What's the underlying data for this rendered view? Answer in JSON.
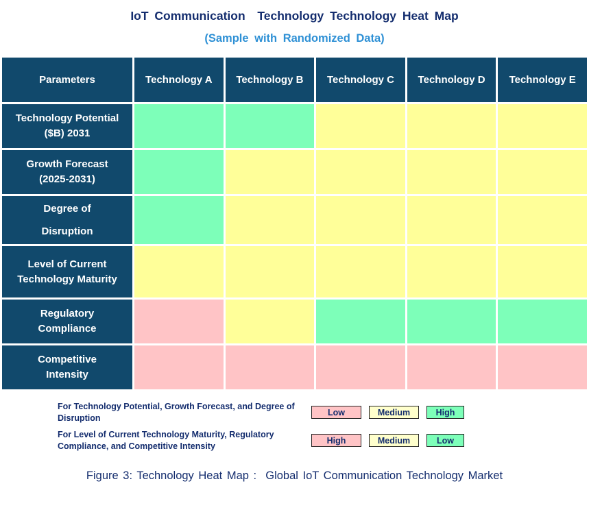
{
  "title": "IoT Communication  Technology Technology Heat Map",
  "subtitle": "(Sample with Randomized Data)",
  "caption": "Figure 3: Technology Heat Map :  Global IoT Communication Technology Market",
  "colors": {
    "header_bg": "#11496C",
    "title_navy": "#142D6E",
    "subtitle_blue": "#2E90D5",
    "cell_green": "#7DFFB9",
    "cell_yellow": "#FFFF99",
    "cell_pink": "#FFC4C6",
    "legend_yellow": "#FFFFCC",
    "grid_lines": "#FFFFFF"
  },
  "table": {
    "header": [
      "Parameters",
      "Technology A",
      "Technology B",
      "Technology C",
      "Technology D",
      "Technology E"
    ],
    "rows": [
      {
        "label": "Technology Potential\n($B) 2031",
        "cells": [
          "green",
          "green",
          "yellow",
          "yellow",
          "yellow"
        ]
      },
      {
        "label": "Growth Forecast\n(2025-2031)",
        "cells": [
          "green",
          "yellow",
          "yellow",
          "yellow",
          "yellow"
        ]
      },
      {
        "label": "Degree of\nDisruption",
        "cells": [
          "green",
          "yellow",
          "yellow",
          "yellow",
          "yellow"
        ]
      },
      {
        "label": "Level of Current\nTechnology Maturity",
        "cells": [
          "yellow",
          "yellow",
          "yellow",
          "yellow",
          "yellow"
        ]
      },
      {
        "label": "Regulatory\nCompliance",
        "cells": [
          "pink",
          "yellow",
          "green",
          "green",
          "green"
        ]
      },
      {
        "label": "Competitive\nIntensity",
        "cells": [
          "pink",
          "pink",
          "pink",
          "pink",
          "pink"
        ]
      }
    ]
  },
  "legend": {
    "rows": [
      {
        "label": "For Technology Potential, Growth Forecast, and Degree of Disruption",
        "items": [
          {
            "text": "Low",
            "color": "pink"
          },
          {
            "text": "Medium",
            "color": "paleyellow"
          },
          {
            "text": "High",
            "color": "green"
          }
        ]
      },
      {
        "label": "For Level of Current Technology Maturity, Regulatory Compliance, and Competitive Intensity",
        "items": [
          {
            "text": "High",
            "color": "pink"
          },
          {
            "text": "Medium",
            "color": "paleyellow"
          },
          {
            "text": "Low",
            "color": "green"
          }
        ]
      }
    ]
  },
  "chart_data": {
    "type": "heatmap",
    "title": "IoT Communication Technology Technology Heat Map",
    "subtitle": "(Sample with Randomized Data)",
    "columns": [
      "Technology A",
      "Technology B",
      "Technology C",
      "Technology D",
      "Technology E"
    ],
    "rows": [
      "Technology Potential ($B) 2031",
      "Growth Forecast (2025-2031)",
      "Degree of Disruption",
      "Level of Current Technology Maturity",
      "Regulatory Compliance",
      "Competitive Intensity"
    ],
    "cell_colors": [
      [
        "green",
        "green",
        "yellow",
        "yellow",
        "yellow"
      ],
      [
        "green",
        "yellow",
        "yellow",
        "yellow",
        "yellow"
      ],
      [
        "green",
        "yellow",
        "yellow",
        "yellow",
        "yellow"
      ],
      [
        "yellow",
        "yellow",
        "yellow",
        "yellow",
        "yellow"
      ],
      [
        "pink",
        "yellow",
        "green",
        "green",
        "green"
      ],
      [
        "pink",
        "pink",
        "pink",
        "pink",
        "pink"
      ]
    ],
    "cell_ratings": [
      [
        "High",
        "High",
        "Medium",
        "Medium",
        "Medium"
      ],
      [
        "High",
        "Medium",
        "Medium",
        "Medium",
        "Medium"
      ],
      [
        "High",
        "Medium",
        "Medium",
        "Medium",
        "Medium"
      ],
      [
        "Medium",
        "Medium",
        "Medium",
        "Medium",
        "Medium"
      ],
      [
        "High",
        "Medium",
        "Low",
        "Low",
        "Low"
      ],
      [
        "High",
        "High",
        "High",
        "High",
        "High"
      ]
    ],
    "color_legend": {
      "ascending_metrics": {
        "applies_to": [
          "Technology Potential",
          "Growth Forecast",
          "Degree of Disruption"
        ],
        "pink": "Low",
        "yellow": "Medium",
        "green": "High"
      },
      "descending_metrics": {
        "applies_to": [
          "Level of Current Technology Maturity",
          "Regulatory Compliance",
          "Competitive Intensity"
        ],
        "pink": "High",
        "yellow": "Medium",
        "green": "Low"
      }
    },
    "legend_position": "bottom",
    "grid": true
  }
}
